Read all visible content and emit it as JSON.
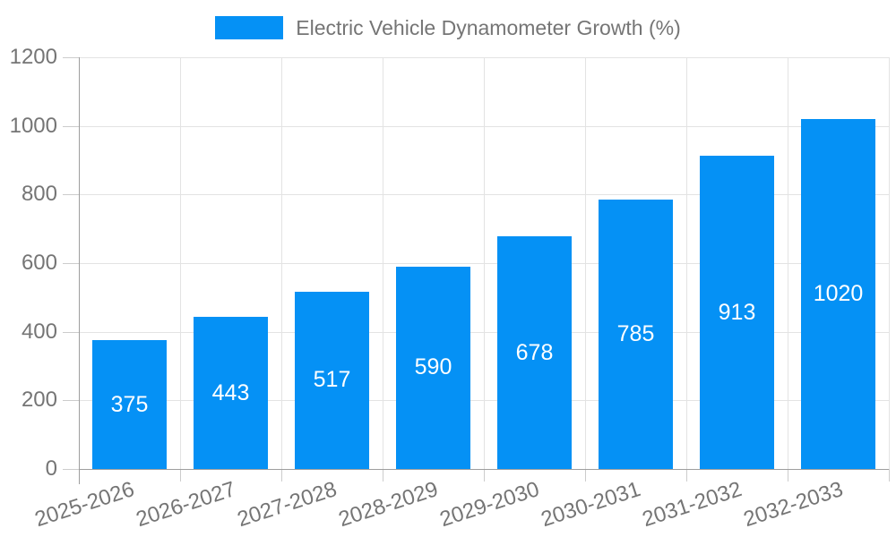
{
  "legend": {
    "swatch_color": "#0591f5"
  },
  "chart_data": {
    "type": "bar",
    "title": "Electric Vehicle Dynamometer Growth (%)",
    "categories": [
      "2025-2026",
      "2026-2027",
      "2027-2028",
      "2028-2029",
      "2029-2030",
      "2030-2031",
      "2031-2032",
      "2032-2033"
    ],
    "values": [
      375,
      443,
      517,
      590,
      678,
      785,
      913,
      1020
    ],
    "xlabel": "",
    "ylabel": "",
    "ylim": [
      0,
      1200
    ],
    "yticks": [
      0,
      200,
      400,
      600,
      800,
      1000,
      1200
    ],
    "grid": true,
    "legend_position": "top-center",
    "bar_color": "#0591f5",
    "value_label_color": "#ffffff",
    "axis_text_color": "#757575",
    "grid_color": "#e3e3e3",
    "axis_line_color": "#9e9e9e"
  }
}
